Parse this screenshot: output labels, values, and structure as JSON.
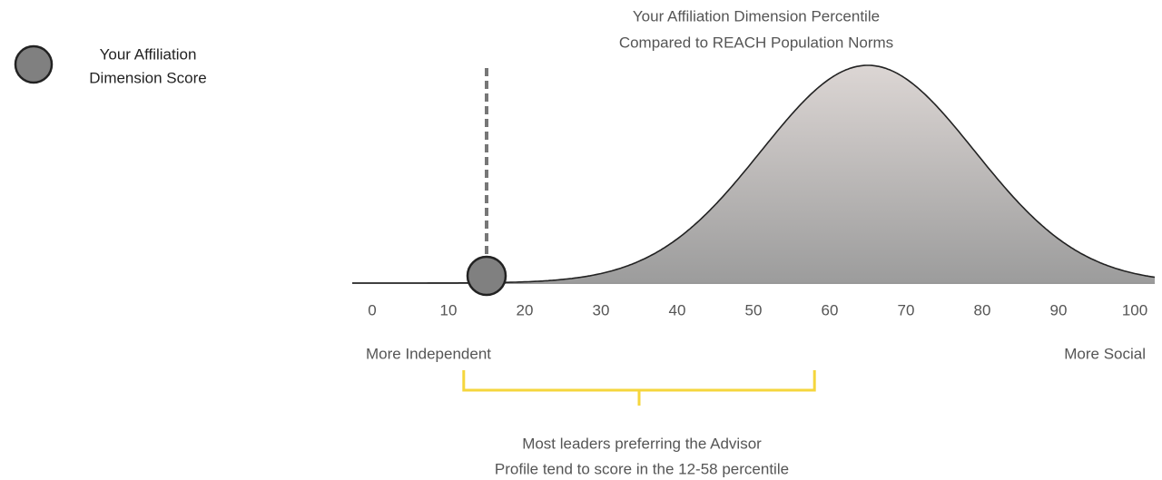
{
  "chart_data": {
    "type": "distribution",
    "title_lines": [
      "Your Affiliation Dimension Percentile",
      "Compared to REACH Population Norms"
    ],
    "legend_lines": [
      "Your Affiliation",
      "Dimension Score"
    ],
    "xlim": [
      0,
      100
    ],
    "xticks": [
      0,
      10,
      20,
      30,
      40,
      50,
      60,
      70,
      80,
      90,
      100
    ],
    "axis_labels": {
      "left": "More Independent",
      "right": "More Social"
    },
    "curve": {
      "mean": 65,
      "sd": 14,
      "color": "#9a9a9a"
    },
    "score": 15,
    "score_color": "#808080",
    "range": [
      12,
      58
    ],
    "range_color": "#f5d63d",
    "annotation_lines": [
      "Most leaders preferring the Advisor",
      "Profile tend to score in the 12-58 percentile"
    ]
  }
}
